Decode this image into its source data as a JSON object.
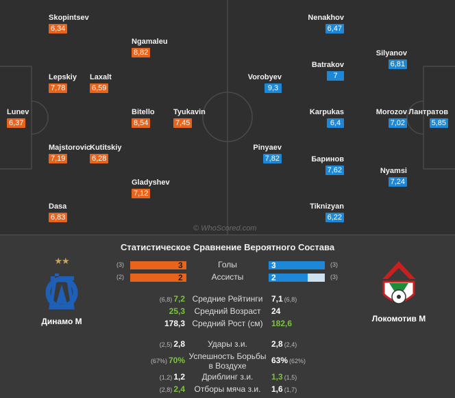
{
  "home_players": [
    {
      "name": "Skopintsev",
      "rating": "6,34"
    },
    {
      "name": "Ngamaleu",
      "rating": "8,82"
    },
    {
      "name": "Lepskiy",
      "rating": "7,78"
    },
    {
      "name": "Laxalt",
      "rating": "6,59"
    },
    {
      "name": "Lunev",
      "rating": "6,37"
    },
    {
      "name": "Bitello",
      "rating": "8,54"
    },
    {
      "name": "Tyukavin",
      "rating": "7,45"
    },
    {
      "name": "Majstorovic",
      "rating": "7,19"
    },
    {
      "name": "Kutitskiy",
      "rating": "6,28"
    },
    {
      "name": "Gladyshev",
      "rating": "7,12"
    },
    {
      "name": "Dasa",
      "rating": "6,83"
    }
  ],
  "away_players": [
    {
      "name": "Nenakhov",
      "rating": "6,47"
    },
    {
      "name": "Silyanov",
      "rating": "6,81"
    },
    {
      "name": "Vorobyev",
      "rating": "9,3"
    },
    {
      "name": "Batrakov",
      "rating": "7"
    },
    {
      "name": "Karpukas",
      "rating": "6,4"
    },
    {
      "name": "Morozov",
      "rating": "7,02"
    },
    {
      "name": "Лантратов",
      "rating": "5,85"
    },
    {
      "name": "Pinyaev",
      "rating": "7,82"
    },
    {
      "name": "Баринов",
      "rating": "7,62"
    },
    {
      "name": "Nyamsi",
      "rating": "7,24"
    },
    {
      "name": "Tiknizyan",
      "rating": "6,22"
    }
  ],
  "watermark": "© WhoScored.com",
  "stats": {
    "title": "Статистическое Сравнение Вероятного Состава",
    "home_team": "Динамо М",
    "away_team": "Локомотив М",
    "home_stars": "★★",
    "bars": [
      {
        "label": "Голы",
        "home": "3",
        "away": "3",
        "home_rank": "(3)",
        "away_rank": "(3)",
        "home_frac": 1.0,
        "away_frac": 1.0
      },
      {
        "label": "Ассисты",
        "home": "2",
        "away": "2",
        "home_rank": "(2)",
        "away_rank": "(3)",
        "home_frac": 1.0,
        "away_frac": 0.7
      }
    ],
    "general": [
      {
        "label": "Средние Рейтинги",
        "home": "7,2",
        "home_rank": "(6,8)",
        "away": "7,1",
        "away_rank": "(6,8)"
      },
      {
        "label": "Средний Возраст",
        "home": "25,3",
        "home_rank": "",
        "away": "24",
        "away_rank": ""
      },
      {
        "label": "Средний Рост (см)",
        "home": "178,3",
        "home_rank": "",
        "away": "182,6",
        "away_rank": ""
      }
    ],
    "detail": [
      {
        "label": "Удары з.и.",
        "home": "2,8",
        "home_rank": "(2,5)",
        "away": "2,8",
        "away_rank": "(2,4)"
      },
      {
        "label1": "Успешность Борьбы",
        "label2": "в Воздухе",
        "home": "70%",
        "home_rank": "(67%)",
        "away": "63%",
        "away_rank": "(62%)"
      },
      {
        "label": "Дриблинг з.и.",
        "home": "1,2",
        "home_rank": "(1,2)",
        "away": "1,3",
        "away_rank": "(1,5)"
      },
      {
        "label": "Отборы мяча з.и.",
        "home": "2,4",
        "home_rank": "(2,8)",
        "away": "1,6",
        "away_rank": "(1,7)"
      }
    ]
  }
}
